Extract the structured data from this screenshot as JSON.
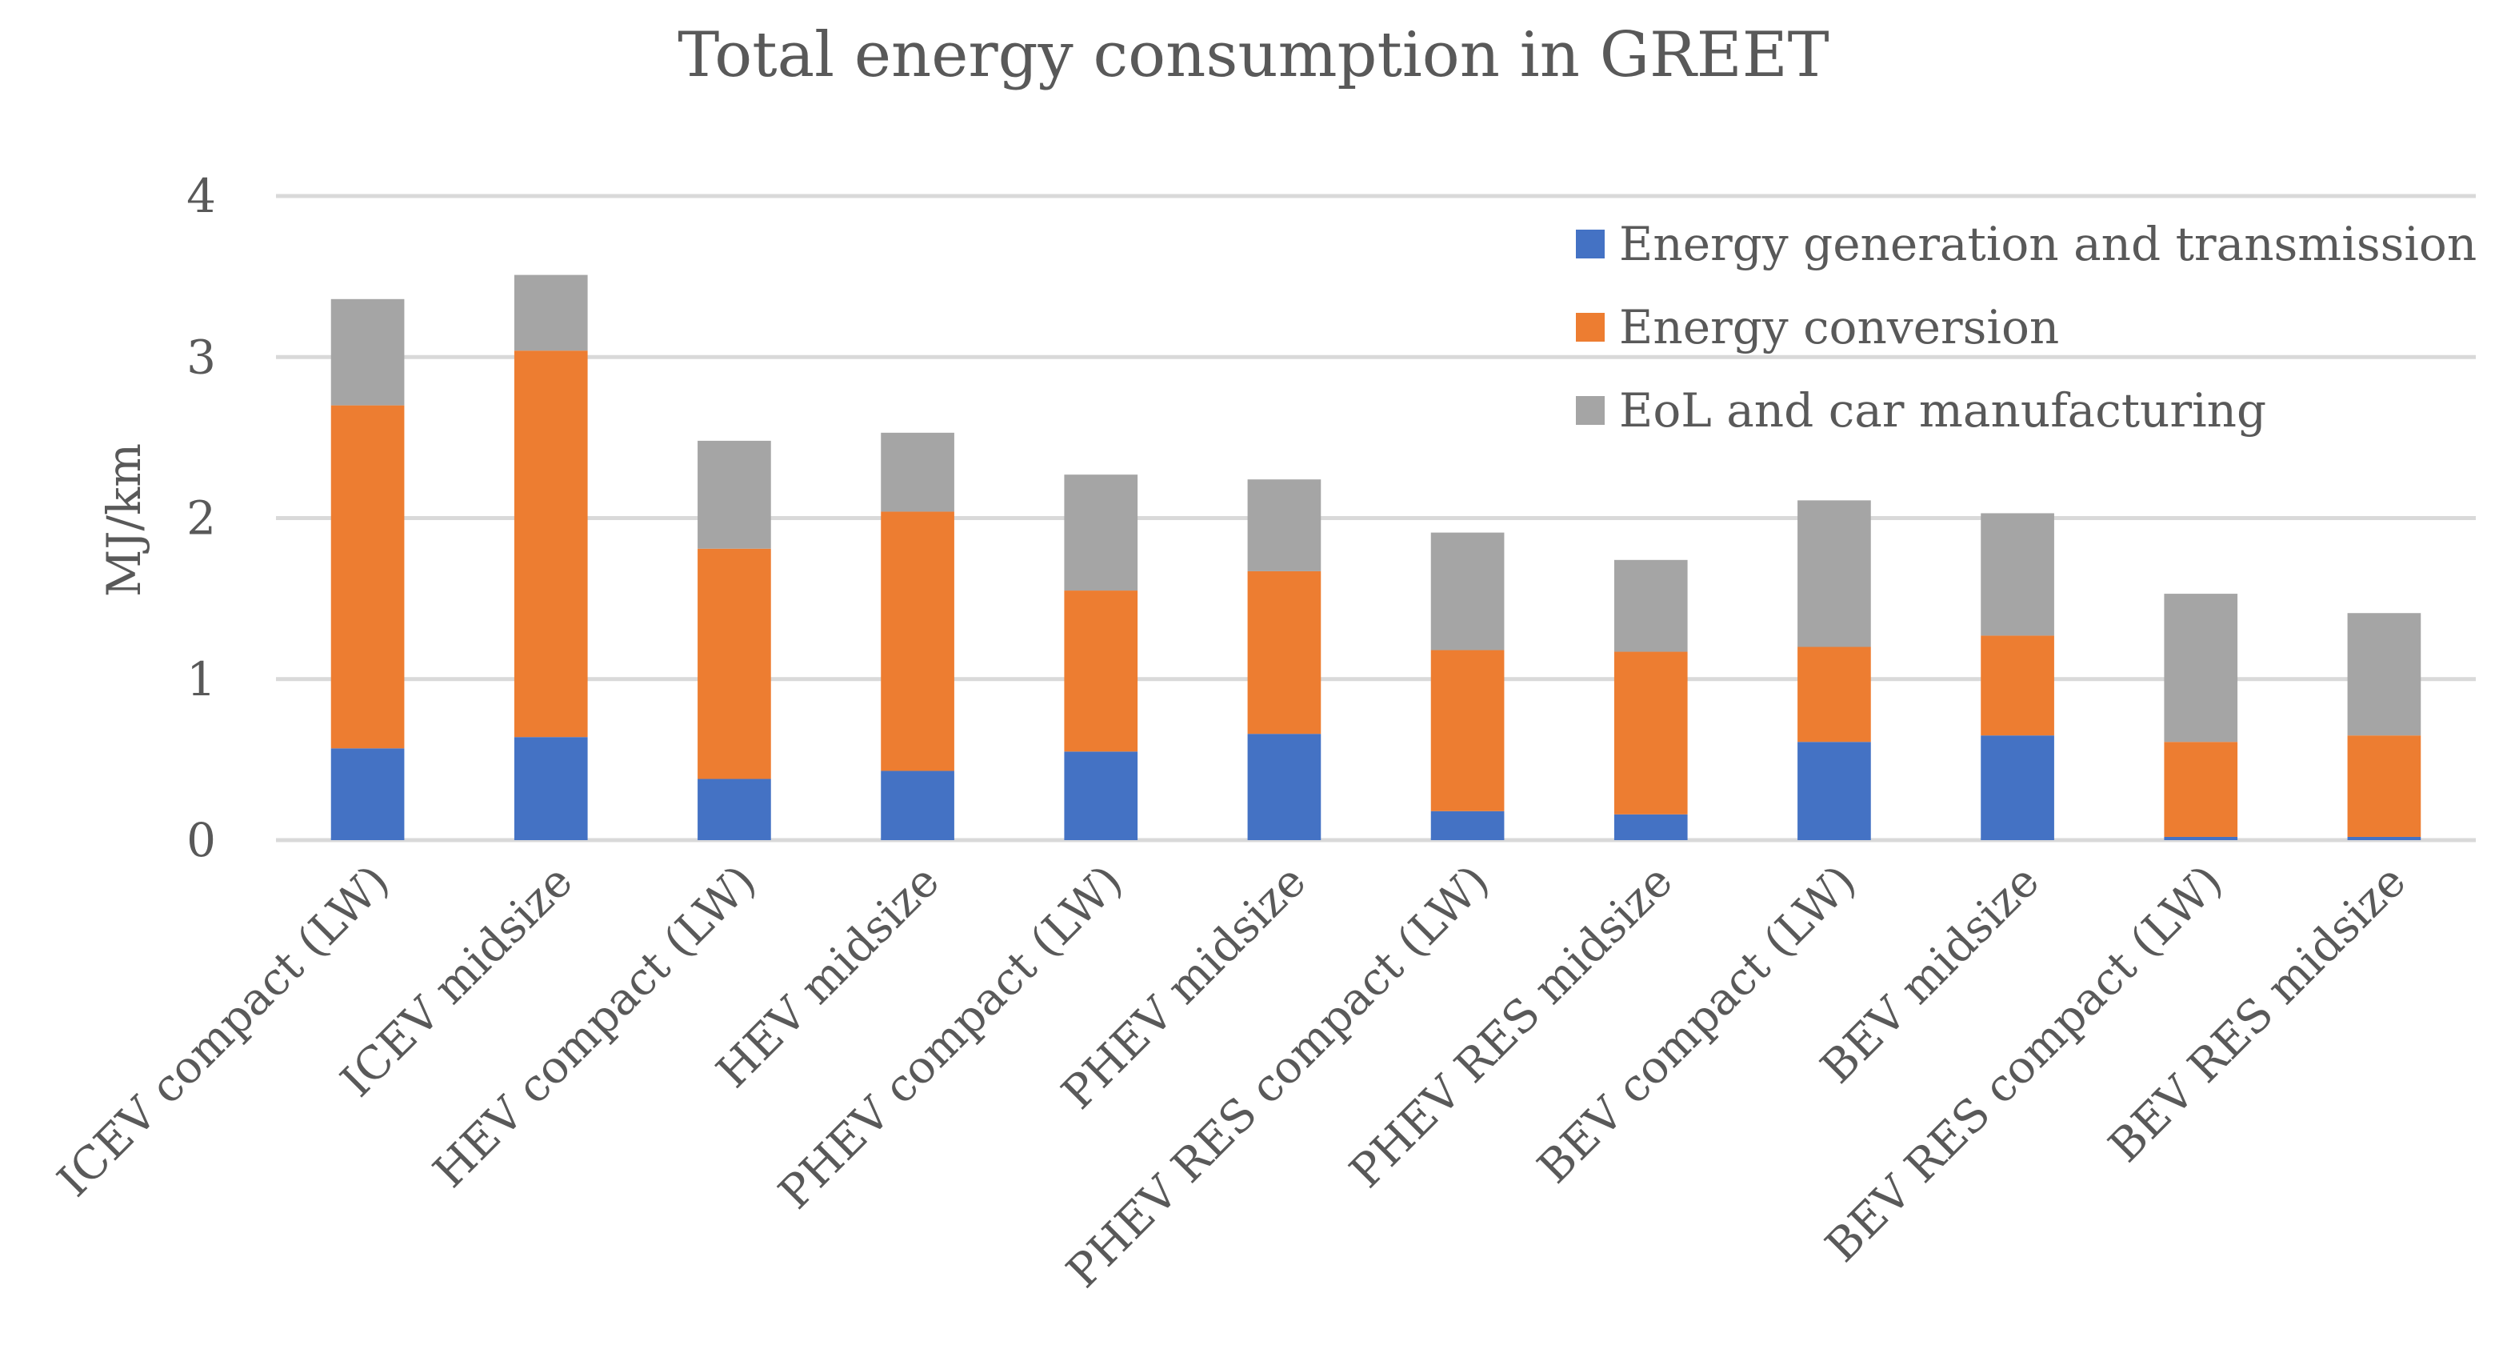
{
  "chart_data": {
    "type": "bar",
    "stacked": true,
    "title": "Total energy consumption in GREET",
    "xlabel": "",
    "ylabel": "MJ/km",
    "ylim": [
      0,
      4
    ],
    "yticks": [
      0,
      1,
      2,
      3,
      4
    ],
    "grid": true,
    "legend_position": "top-right",
    "categories": [
      "ICEV compact (LW)",
      "ICEV midsize",
      "HEV compact (LW)",
      "HEV midsize",
      "PHEV compact (LW)",
      "PHEV midsize",
      "PHEV RES compact (LW)",
      "PHEV RES midsize",
      "BEV compact (LW)",
      "BEV midsize",
      "BEV RES compact (LW)",
      "BEV RES midsize"
    ],
    "series": [
      {
        "name": "Energy generation and transmission",
        "color": "#4472c4",
        "values": [
          0.57,
          0.64,
          0.38,
          0.43,
          0.55,
          0.66,
          0.18,
          0.16,
          0.61,
          0.65,
          0.02,
          0.02
        ]
      },
      {
        "name": "Energy conversion",
        "color": "#ed7d31",
        "values": [
          2.13,
          2.4,
          1.43,
          1.61,
          1.0,
          1.01,
          1.0,
          1.01,
          0.59,
          0.62,
          0.59,
          0.63
        ]
      },
      {
        "name": "EoL and car manufacturing",
        "color": "#a5a5a5",
        "values": [
          0.66,
          0.47,
          0.67,
          0.49,
          0.72,
          0.57,
          0.73,
          0.57,
          0.91,
          0.76,
          0.92,
          0.76
        ]
      }
    ]
  }
}
